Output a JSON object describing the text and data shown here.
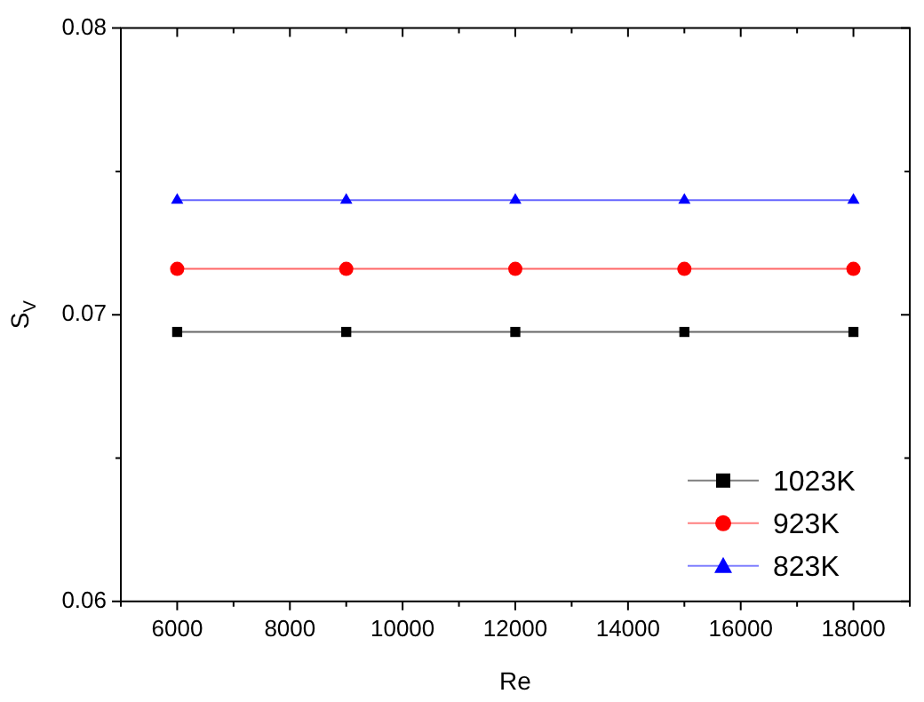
{
  "chart_data": {
    "type": "line",
    "xlabel": "Re",
    "ylabel": "S$_{V}$",
    "x": [
      6000,
      9000,
      12000,
      15000,
      18000
    ],
    "series": [
      {
        "name": "1023K",
        "color": "#000000",
        "marker": "square",
        "values": [
          0.0694,
          0.0694,
          0.0694,
          0.0694,
          0.0694
        ]
      },
      {
        "name": "923K",
        "color": "#ff0000",
        "marker": "circle",
        "values": [
          0.0716,
          0.0716,
          0.0716,
          0.0716,
          0.0716
        ]
      },
      {
        "name": "823K",
        "color": "#0000ff",
        "marker": "triangle",
        "values": [
          0.074,
          0.074,
          0.074,
          0.074,
          0.074
        ]
      }
    ],
    "xlim": [
      5000,
      19000
    ],
    "xticks": [
      {
        "value": 5000,
        "label": null
      },
      6000,
      {
        "value": 7000,
        "label": null
      },
      8000,
      {
        "value": 9000,
        "label": null
      },
      10000,
      {
        "value": 11000,
        "label": null
      },
      12000,
      {
        "value": 13000,
        "label": null
      },
      14000,
      {
        "value": 15000,
        "label": null
      },
      16000,
      {
        "value": 17000,
        "label": null
      },
      18000,
      {
        "value": 19000,
        "label": null
      }
    ],
    "ylim": [
      0.06,
      0.08
    ],
    "yticks": [
      {
        "value": 0.06,
        "label": "0.06"
      },
      {
        "value": 0.065,
        "label": null
      },
      {
        "value": 0.07,
        "label": "0.07"
      },
      {
        "value": 0.075,
        "label": null
      },
      {
        "value": 0.08,
        "label": "0.08"
      }
    ],
    "legend": "bottom right",
    "grid": false
  }
}
